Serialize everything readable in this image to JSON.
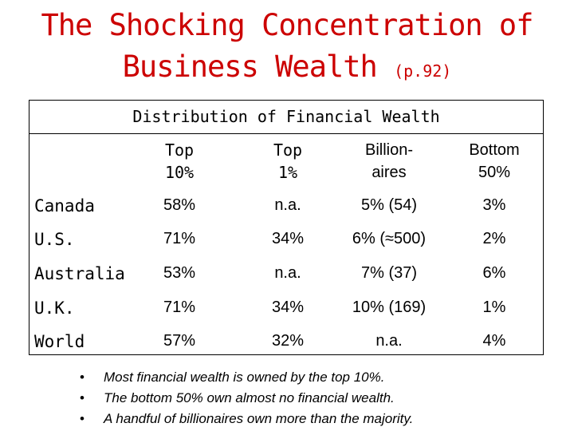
{
  "title": {
    "line1": "The Shocking Concentration of",
    "line2": "Business Wealth",
    "page_ref": "(p.92)"
  },
  "table": {
    "caption": "Distribution of Financial Wealth",
    "headers": [
      {
        "line1": "Top",
        "line2": "10%"
      },
      {
        "line1": "Top",
        "line2": "1%"
      },
      {
        "line1": "Billion-",
        "line2": "aires"
      },
      {
        "line1": "Bottom",
        "line2": "50%"
      }
    ],
    "rows": [
      {
        "label": "Canada",
        "values": [
          "58%",
          "n.a.",
          "5% (54)",
          "3%"
        ]
      },
      {
        "label": "U.S.",
        "values": [
          "71%",
          "34%",
          "6% (≈500)",
          "2%"
        ]
      },
      {
        "label": "Australia",
        "values": [
          "53%",
          "n.a.",
          "7% (37)",
          "6%"
        ]
      },
      {
        "label": "U.K.",
        "values": [
          "71%",
          "34%",
          "10% (169)",
          "1%"
        ]
      },
      {
        "label": "World",
        "values": [
          "57%",
          "32%",
          "n.a.",
          "4%"
        ]
      }
    ]
  },
  "bullets": [
    "Most financial wealth is owned by the top 10%.",
    "The bottom 50% own almost no financial wealth.",
    "A handful of billionaires own more than the majority."
  ]
}
